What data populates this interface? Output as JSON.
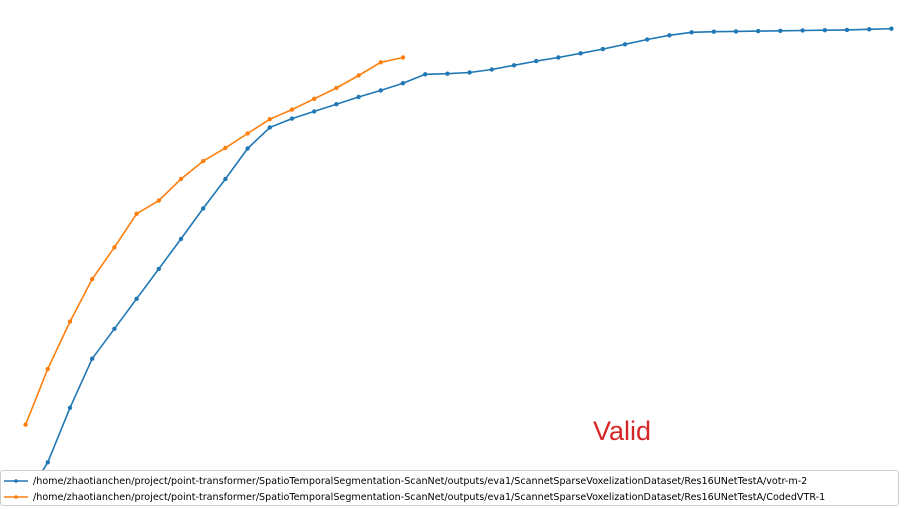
{
  "chart_data": {
    "type": "line",
    "title": "",
    "xlabel": "",
    "ylabel": "",
    "grid": false,
    "legend_placement": "bottom-left",
    "annotation": "Valid",
    "annotation_color": "#d62728",
    "xlim": [
      -0.5,
      39.5
    ],
    "ylim": [
      0.0,
      0.85
    ],
    "series": [
      {
        "name": "/home/zhaotianchen/project/point-transformer/SpatioTemporalSegmentation-ScanNet/outputs/eva1/ScannetSparseVoxelizationDataset/Res16UNetTestA/votr-m-2",
        "color": "#1f77b4",
        "x": [
          0,
          1,
          2,
          3,
          4,
          5,
          6,
          7,
          8,
          9,
          10,
          11,
          12,
          13,
          14,
          15,
          16,
          17,
          18,
          19,
          20,
          21,
          22,
          23,
          24,
          25,
          26,
          27,
          28,
          29,
          30,
          31,
          32,
          33,
          34,
          35,
          36,
          37,
          38,
          39
        ],
        "values": [
          0.018,
          0.078,
          0.169,
          0.251,
          0.301,
          0.351,
          0.401,
          0.451,
          0.502,
          0.551,
          0.602,
          0.637,
          0.652,
          0.664,
          0.676,
          0.688,
          0.699,
          0.711,
          0.726,
          0.727,
          0.729,
          0.734,
          0.741,
          0.748,
          0.754,
          0.761,
          0.768,
          0.776,
          0.784,
          0.791,
          0.796,
          0.797,
          0.7975,
          0.798,
          0.7985,
          0.799,
          0.7995,
          0.8,
          0.801,
          0.802
        ]
      },
      {
        "name": "/home/zhaotianchen/project/point-transformer/SpatioTemporalSegmentation-ScanNet/outputs/eva1/ScannetSparseVoxelizationDataset/Res16UNetTestA/CodedVTR-1",
        "color": "#ff7f0e",
        "x": [
          0,
          1,
          2,
          3,
          4,
          5,
          6,
          7,
          8,
          9,
          10,
          11,
          12,
          13,
          14,
          15,
          16,
          17
        ],
        "values": [
          0.141,
          0.234,
          0.313,
          0.384,
          0.437,
          0.493,
          0.515,
          0.551,
          0.581,
          0.603,
          0.627,
          0.651,
          0.667,
          0.685,
          0.703,
          0.724,
          0.746,
          0.754
        ]
      }
    ]
  }
}
